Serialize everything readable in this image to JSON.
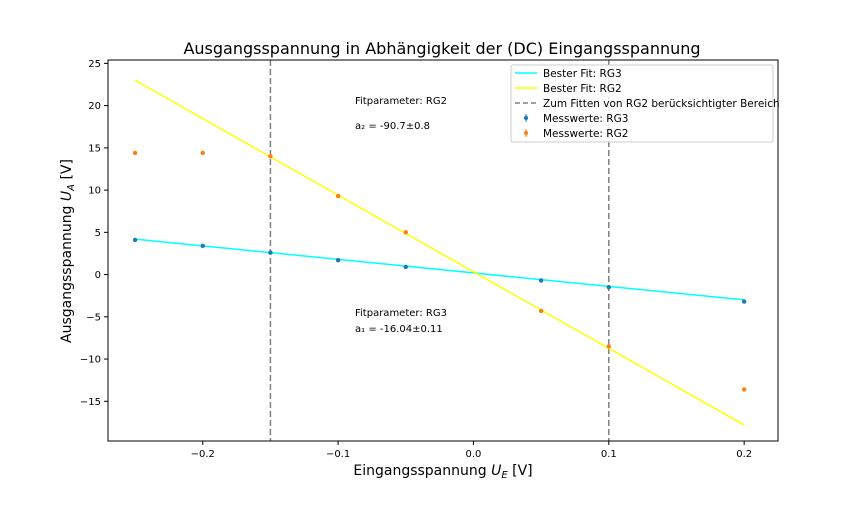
{
  "chart_data": {
    "type": "scatter",
    "title": "Ausgangsspannung in Abhängigkeit der (DC) Eingangsspannung",
    "xlabel": "Eingangsspannung U_E [V]",
    "ylabel": "Ausgangsspannung U_A [V]",
    "xlim": [
      -0.27,
      0.225
    ],
    "ylim": [
      -19.7,
      25.4
    ],
    "xticks": [
      -0.2,
      -0.1,
      0.0,
      0.1,
      0.2
    ],
    "xtick_labels": [
      "−0.2",
      "−0.1",
      "0.0",
      "0.1",
      "0.2"
    ],
    "yticks": [
      -15,
      -10,
      -5,
      0,
      5,
      10,
      15,
      20,
      25
    ],
    "ytick_labels": [
      "−15",
      "−10",
      "−5",
      "0",
      "5",
      "10",
      "15",
      "20",
      "25"
    ],
    "grid": false,
    "legend_position": "top-right",
    "series": [
      {
        "name": "Messwerte: RG3",
        "kind": "errorbar",
        "color": "#1f77b4",
        "x": [
          -0.25,
          -0.2,
          -0.15,
          -0.1,
          -0.05,
          0.05,
          0.1,
          0.2
        ],
        "y": [
          4.1,
          3.4,
          2.6,
          1.7,
          0.9,
          -0.7,
          -1.5,
          -3.2
        ]
      },
      {
        "name": "Messwerte: RG2",
        "kind": "errorbar",
        "color": "#ff7f0e",
        "x": [
          -0.25,
          -0.2,
          -0.15,
          -0.1,
          -0.05,
          0.05,
          0.1,
          0.2
        ],
        "y": [
          14.4,
          14.4,
          14.0,
          9.3,
          5.0,
          -4.3,
          -8.5,
          -13.6
        ]
      },
      {
        "name": "Bester Fit: RG3",
        "kind": "line",
        "color": "#00ffff",
        "x": [
          -0.25,
          0.2
        ],
        "y": [
          4.2,
          -3.0
        ]
      },
      {
        "name": "Bester Fit: RG2",
        "kind": "line",
        "color": "#ffff00",
        "x": [
          -0.25,
          0.2
        ],
        "y": [
          23.0,
          -17.8
        ]
      }
    ],
    "vlines": {
      "name": "Zum Fitten von RG2 berücksichtigter Bereich",
      "color": "#808080",
      "x": [
        -0.15,
        0.1
      ]
    },
    "annotations": {
      "rg2_title": "Fitparameter: RG2",
      "rg2_value": "a₂ = -90.7±0.8",
      "rg3_title": "Fitparameter: RG3",
      "rg3_value": "a₁ = -16.04±0.11"
    }
  }
}
